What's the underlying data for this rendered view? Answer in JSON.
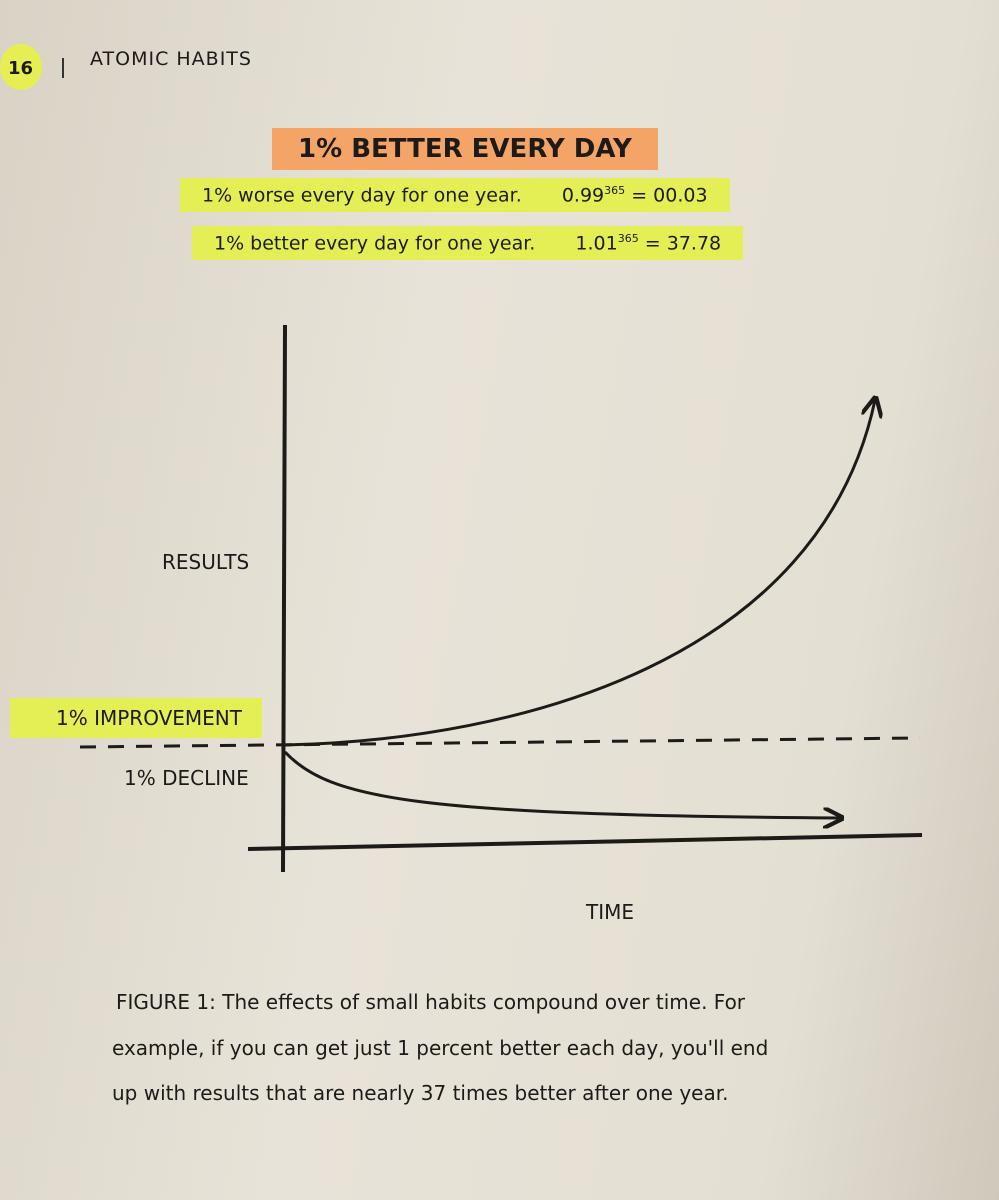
{
  "header": {
    "page_number": "16",
    "book_title": "ATOMIC HABITS"
  },
  "figure": {
    "title": "1% BETTER EVERY DAY",
    "rows": [
      {
        "text": "1% worse every day for one year.",
        "base": "0.99",
        "exponent": "365",
        "rhs": "= 00.03"
      },
      {
        "text": "1% better every day for one year.",
        "base": "1.01",
        "exponent": "365",
        "rhs": "= 37.78"
      }
    ],
    "y_axis_label": "RESULTS",
    "improvement_label": "1% IMPROVEMENT",
    "decline_label": "1% DECLINE",
    "x_axis_label": "TIME",
    "caption": [
      "FIGURE 1: The effects of small habits compound over time. For",
      "example, if you can get just 1 percent better each day, you'll end",
      "up with results that are nearly 37 times better after one year."
    ]
  }
}
